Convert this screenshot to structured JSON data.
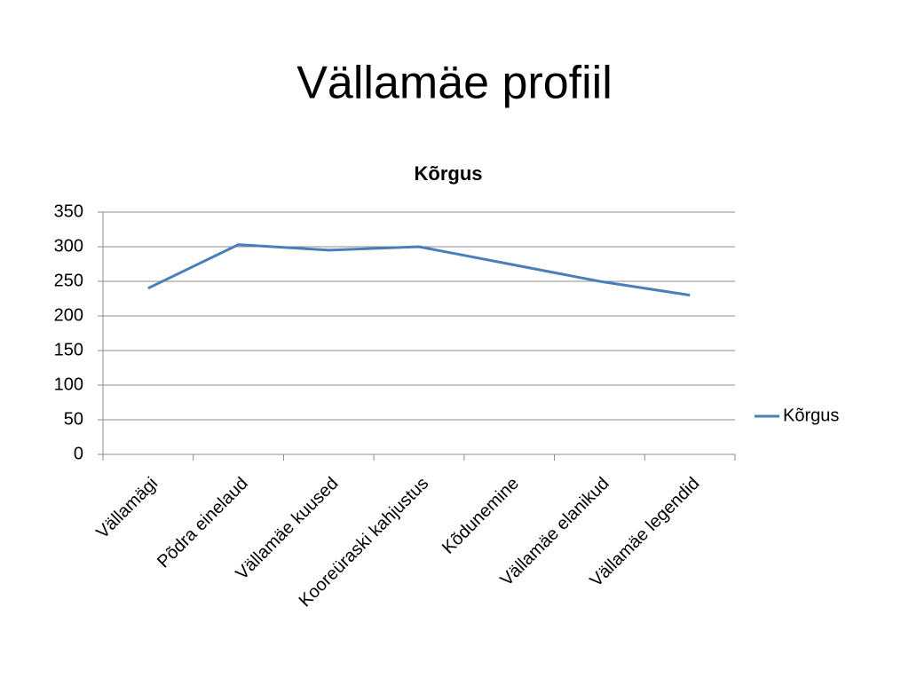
{
  "title": "Vällamäe profiil",
  "chart_data": {
    "type": "line",
    "title": "Kõrgus",
    "categories": [
      "Vällamägi",
      "Põdra einelaud",
      "Vällamäe kuused",
      "Kooreüraski kahjustus",
      "Kõdunemine",
      "Vällamäe elanikud",
      "Vällamäe legendid"
    ],
    "series": [
      {
        "name": "Kõrgus",
        "color": "#4a7ebb",
        "values": [
          240,
          303,
          295,
          300,
          275,
          250,
          230
        ]
      }
    ],
    "ylim": [
      0,
      350
    ],
    "yticks": [
      0,
      50,
      100,
      150,
      200,
      250,
      300,
      350
    ],
    "grid": true,
    "legend": "right"
  }
}
